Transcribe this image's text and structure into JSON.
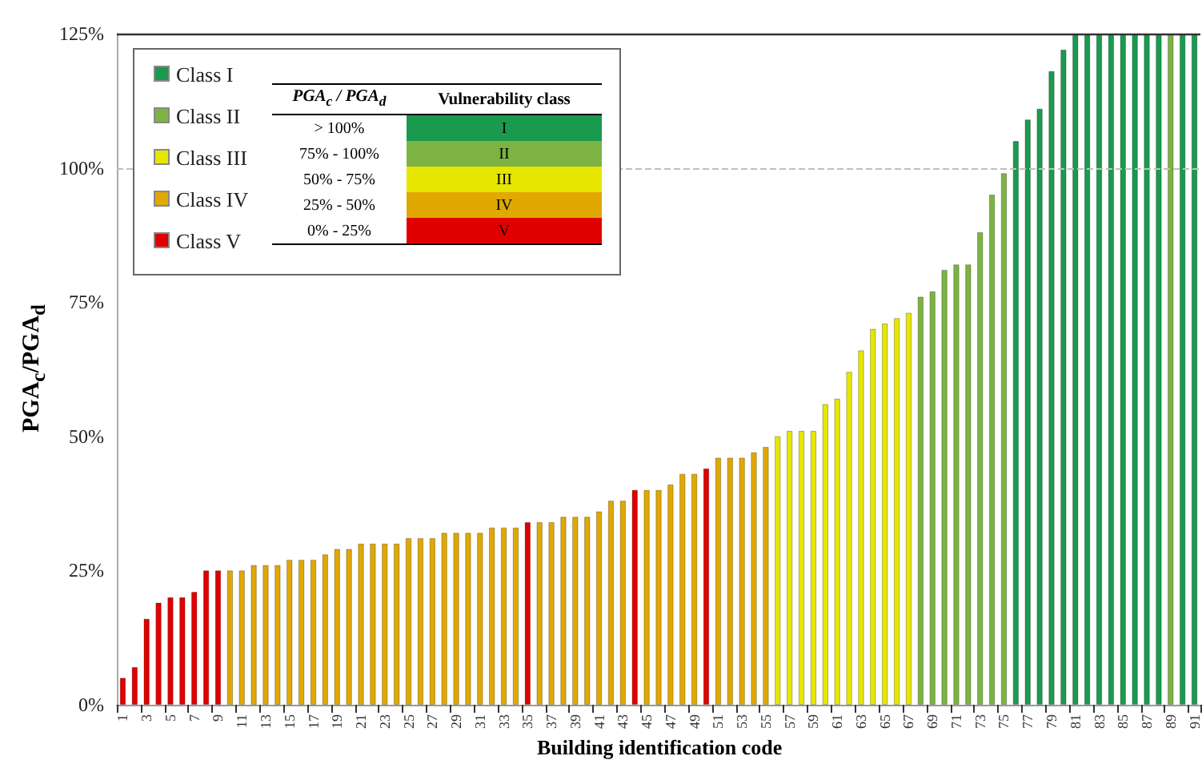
{
  "chart_data": {
    "type": "bar",
    "stacked": true,
    "xlabel": "Building identification code",
    "ylabel": "PGA$_{c}$/PGA$_{d}$",
    "categories": [
      "1",
      null,
      "3",
      null,
      "5",
      null,
      "7",
      null,
      "9",
      null,
      "11",
      null,
      "13",
      null,
      "15",
      null,
      "17",
      null,
      "19",
      null,
      "21",
      null,
      "23",
      null,
      "25",
      null,
      "27",
      null,
      "29",
      null,
      "31",
      null,
      "33",
      null,
      "35",
      null,
      "37",
      null,
      "39",
      null,
      "41",
      null,
      "43",
      null,
      "45",
      null,
      "47",
      null,
      "49",
      null,
      "51",
      null,
      "53",
      null,
      "55",
      null,
      "57",
      null,
      "59",
      null,
      "61",
      null,
      "63",
      null,
      "65",
      null,
      "67",
      null,
      "69",
      null,
      "71",
      null,
      "73",
      null,
      "75",
      null,
      "77",
      null,
      "79",
      null,
      "81",
      null,
      "83",
      null,
      "85",
      null,
      "87",
      null,
      "89",
      null,
      "91"
    ],
    "series": [
      {
        "name": "Class I",
        "color": "#1a9a4e",
        "values": [
          null,
          null,
          null,
          null,
          null,
          null,
          null,
          null,
          null,
          null,
          null,
          null,
          null,
          null,
          null,
          null,
          null,
          null,
          null,
          null,
          null,
          null,
          null,
          null,
          null,
          null,
          null,
          null,
          null,
          null,
          null,
          null,
          null,
          null,
          null,
          null,
          null,
          null,
          null,
          null,
          null,
          null,
          null,
          null,
          null,
          null,
          null,
          null,
          null,
          null,
          null,
          null,
          null,
          null,
          null,
          null,
          null,
          null,
          null,
          null,
          null,
          null,
          null,
          null,
          null,
          null,
          null,
          null,
          null,
          null,
          null,
          null,
          null,
          null,
          null,
          105,
          109,
          111,
          118,
          122,
          125,
          125,
          125,
          125,
          125,
          125,
          125,
          125,
          null,
          125,
          125
        ]
      },
      {
        "name": "Class II",
        "color": "#7cb342",
        "values": [
          null,
          null,
          null,
          null,
          null,
          null,
          null,
          null,
          null,
          null,
          null,
          null,
          null,
          null,
          null,
          null,
          null,
          null,
          null,
          null,
          null,
          null,
          null,
          null,
          null,
          null,
          null,
          null,
          null,
          null,
          null,
          null,
          null,
          null,
          null,
          null,
          null,
          null,
          null,
          null,
          null,
          null,
          null,
          null,
          null,
          null,
          null,
          null,
          null,
          null,
          null,
          null,
          null,
          null,
          null,
          null,
          null,
          null,
          null,
          null,
          null,
          null,
          null,
          null,
          null,
          null,
          null,
          76,
          77,
          81,
          82,
          82,
          88,
          95,
          99,
          null,
          null,
          null,
          null,
          null,
          null,
          null,
          null,
          null,
          null,
          null,
          null,
          null,
          125,
          null,
          null
        ]
      },
      {
        "name": "Class III",
        "color": "#e6e600",
        "values": [
          null,
          null,
          null,
          null,
          null,
          null,
          null,
          null,
          null,
          null,
          null,
          null,
          null,
          null,
          null,
          null,
          null,
          null,
          null,
          null,
          null,
          null,
          null,
          null,
          null,
          null,
          null,
          null,
          null,
          null,
          null,
          null,
          null,
          null,
          null,
          null,
          null,
          null,
          null,
          null,
          null,
          null,
          null,
          null,
          null,
          null,
          null,
          null,
          null,
          null,
          null,
          null,
          null,
          null,
          null,
          50,
          51,
          51,
          51,
          56,
          57,
          62,
          66,
          70,
          71,
          72,
          73,
          null,
          null,
          null,
          null,
          null,
          null,
          null,
          null,
          null,
          null,
          null,
          null,
          null,
          null,
          null,
          null,
          null,
          null,
          null,
          null,
          null,
          null,
          null,
          null
        ]
      },
      {
        "name": "Class IV",
        "color": "#e0a800",
        "values": [
          null,
          null,
          null,
          null,
          null,
          null,
          null,
          null,
          null,
          25,
          25,
          26,
          26,
          26,
          27,
          27,
          27,
          28,
          29,
          29,
          30,
          30,
          30,
          30,
          31,
          31,
          31,
          32,
          32,
          32,
          32,
          33,
          33,
          33,
          null,
          34,
          34,
          35,
          35,
          35,
          36,
          38,
          38,
          null,
          40,
          40,
          41,
          43,
          43,
          null,
          46,
          46,
          46,
          47,
          48,
          null,
          null,
          null,
          null,
          null,
          null,
          null,
          null,
          null,
          null,
          null,
          null,
          null,
          null,
          null,
          null,
          null,
          null,
          null,
          null,
          null,
          null,
          null,
          null,
          null,
          null,
          null,
          null,
          null,
          null,
          null,
          null,
          null,
          null,
          null,
          null
        ]
      },
      {
        "name": "Class V",
        "color": "#e00000",
        "values": [
          5,
          7,
          16,
          19,
          20,
          20,
          21,
          25,
          25,
          null,
          null,
          null,
          null,
          null,
          null,
          null,
          null,
          null,
          null,
          null,
          null,
          null,
          null,
          null,
          null,
          null,
          null,
          null,
          null,
          null,
          null,
          null,
          null,
          null,
          34,
          null,
          null,
          null,
          null,
          null,
          null,
          null,
          null,
          40,
          null,
          null,
          null,
          null,
          null,
          44,
          null,
          null,
          null,
          null,
          null,
          null,
          null,
          null,
          null,
          null,
          null,
          null,
          null,
          null,
          null,
          null,
          null,
          null,
          null,
          null,
          null,
          null,
          null,
          null,
          null,
          null,
          null,
          null,
          null,
          null,
          null,
          null,
          null,
          null,
          null,
          null,
          null,
          null,
          null,
          null,
          null
        ]
      }
    ],
    "ylim": [
      0,
      125
    ],
    "yticks": [
      {
        "value": 0,
        "label": "0%"
      },
      {
        "value": 25,
        "label": "25%"
      },
      {
        "value": 50,
        "label": "50%"
      },
      {
        "value": 75,
        "label": "75%"
      },
      {
        "value": 100,
        "label": "100%"
      },
      {
        "value": 125,
        "label": "125%"
      }
    ],
    "ref_lines": [
      {
        "axis": "y",
        "value": 100,
        "color": "#c0c0c0",
        "line_style": "dashed"
      }
    ],
    "grid": false,
    "legend": "top left",
    "annotations": [
      "PGA$_{c}$ / PGA$_{d}$",
      "Vulnerability class",
      "> 100%",
      "I",
      "75% - 100%",
      "II",
      "50% - 75%",
      "III",
      "25% - 50%",
      "IV",
      "0% - 25%",
      "V"
    ]
  }
}
